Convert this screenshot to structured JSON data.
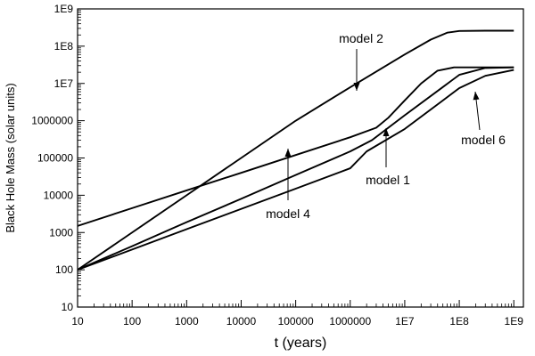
{
  "chart_data": {
    "type": "line",
    "title": "",
    "xlabel": "t (years)",
    "ylabel": "Black Hole Mass (solar units)",
    "x_scale": "log",
    "y_scale": "log",
    "xlim": [
      10,
      1500000000
    ],
    "ylim": [
      10,
      1000000000
    ],
    "grid": false,
    "x_tick_labels": [
      {
        "value": 10,
        "label": "10"
      },
      {
        "value": 100,
        "label": "100"
      },
      {
        "value": 1000,
        "label": "1000"
      },
      {
        "value": 10000,
        "label": "10000"
      },
      {
        "value": 100000,
        "label": "100000"
      },
      {
        "value": 1000000,
        "label": "1000000"
      },
      {
        "value": 10000000,
        "label": "1E7"
      },
      {
        "value": 100000000,
        "label": "1E8"
      },
      {
        "value": 1000000000,
        "label": "1E9"
      }
    ],
    "y_tick_labels": [
      {
        "value": 10,
        "label": "10"
      },
      {
        "value": 100,
        "label": "100"
      },
      {
        "value": 1000,
        "label": "1000"
      },
      {
        "value": 10000,
        "label": "10000"
      },
      {
        "value": 100000,
        "label": "100000"
      },
      {
        "value": 1000000,
        "label": "1000000"
      },
      {
        "value": 10000000,
        "label": "1E7"
      },
      {
        "value": 100000000,
        "label": "1E8"
      },
      {
        "value": 1000000000,
        "label": "1E9"
      }
    ],
    "series": [
      {
        "values": [
          [
            10,
            100
          ],
          [
            100,
            1000
          ],
          [
            1000,
            10000
          ],
          [
            10000,
            100000
          ],
          [
            100000,
            1000000
          ],
          [
            1000000,
            7900000
          ],
          [
            10000000,
            60000000
          ],
          [
            30000000,
            150000000
          ],
          [
            60000000,
            230000000
          ],
          [
            100000000,
            255000000
          ],
          [
            300000000,
            260000000
          ],
          [
            1000000000,
            260000000
          ]
        ]
      },
      {
        "values": [
          [
            10,
            1500
          ],
          [
            100,
            4500
          ],
          [
            1000,
            13500
          ],
          [
            10000,
            40000
          ],
          [
            100000,
            120000
          ],
          [
            1000000,
            360000
          ],
          [
            3000000,
            650000
          ],
          [
            5000000,
            1200000
          ],
          [
            10000000,
            3500000
          ],
          [
            20000000,
            10000000
          ],
          [
            40000000,
            22000000
          ],
          [
            80000000,
            27000000
          ],
          [
            1000000000,
            27000000
          ]
        ]
      },
      {
        "values": [
          [
            10,
            100
          ],
          [
            100,
            430
          ],
          [
            1000,
            1900
          ],
          [
            10000,
            8000
          ],
          [
            100000,
            35000
          ],
          [
            1000000,
            150000
          ],
          [
            2500000,
            300000
          ],
          [
            10000000,
            1400000
          ],
          [
            50000000,
            8000000
          ],
          [
            100000000,
            17000000
          ],
          [
            300000000,
            26000000
          ],
          [
            1000000000,
            27000000
          ]
        ]
      },
      {
        "values": [
          [
            10,
            100
          ],
          [
            100,
            350
          ],
          [
            1000,
            1230
          ],
          [
            10000,
            4300
          ],
          [
            100000,
            15000
          ],
          [
            1000000,
            53000
          ],
          [
            2000000,
            150000
          ],
          [
            10000000,
            600000
          ],
          [
            50000000,
            3500000
          ],
          [
            100000000,
            7500000
          ],
          [
            300000000,
            16000000
          ],
          [
            1000000000,
            23000000
          ]
        ]
      }
    ],
    "annotations": [
      {
        "text": "model 2",
        "at": [
          4000000,
          10000000
        ]
      },
      {
        "text": "model 4",
        "at": [
          70000,
          160000
        ]
      },
      {
        "text": "model 1",
        "at": [
          4500000,
          850000
        ]
      },
      {
        "text": "model 6",
        "at": [
          200000000,
          7000000
        ]
      }
    ],
    "legend": "none"
  }
}
